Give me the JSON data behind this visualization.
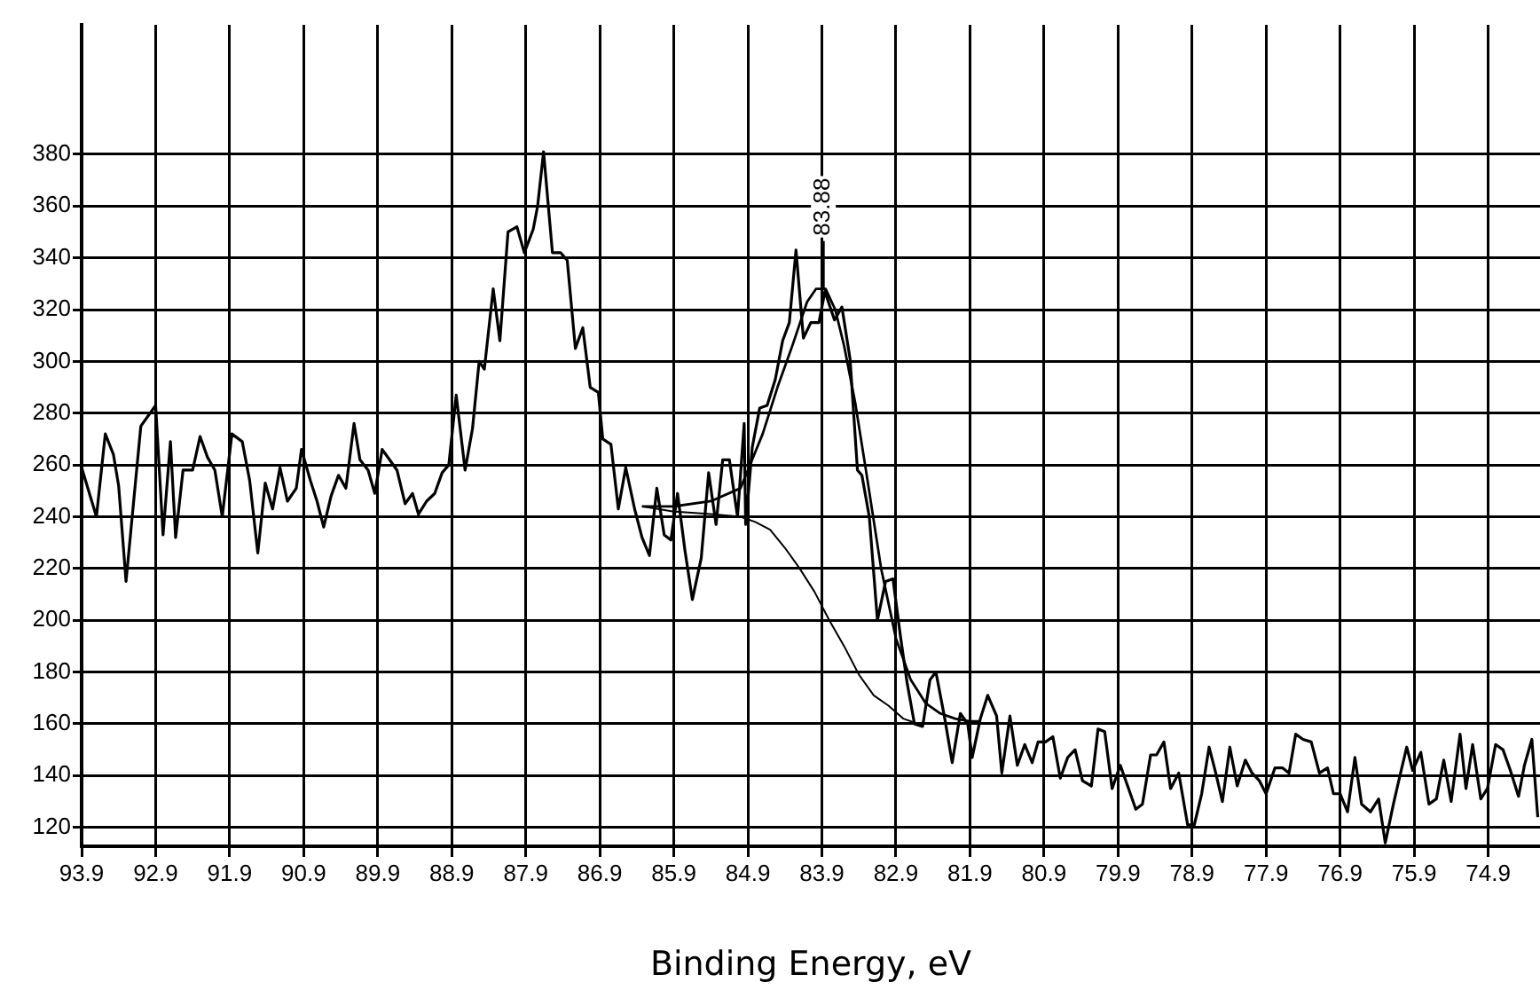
{
  "chart_data": {
    "type": "line",
    "xlabel": "Binding Energy, eV",
    "xlim": [
      93.9,
      74.2
    ],
    "ylim": [
      112.7,
      430
    ],
    "xticks": [
      93.9,
      92.9,
      91.9,
      90.9,
      89.9,
      88.9,
      87.9,
      86.9,
      85.9,
      84.9,
      83.9,
      82.9,
      81.9,
      80.9,
      79.9,
      78.9,
      77.9,
      76.9,
      75.9,
      74.9
    ],
    "yticks": [
      120,
      140,
      160,
      180,
      200,
      220,
      240,
      260,
      280,
      300,
      320,
      340,
      360,
      380
    ],
    "grid": true,
    "marker": "none",
    "line_style": "solid",
    "annotations": [
      {
        "text": "83.88",
        "x": 83.88,
        "y": 328
      }
    ],
    "series": [
      {
        "type": "line",
        "color": "#000000",
        "x": [
          93.9,
          93.7,
          93.58,
          93.47,
          93.4,
          93.3,
          93.1,
          92.9,
          92.8,
          92.7,
          92.63,
          92.53,
          92.4,
          92.3,
          92.2,
          92.1,
          92.0,
          91.87,
          91.73,
          91.63,
          91.52,
          91.42,
          91.32,
          91.22,
          91.12,
          91.0,
          90.93,
          90.81,
          90.72,
          90.63,
          90.53,
          90.43,
          90.33,
          90.22,
          90.14,
          90.03,
          89.94,
          89.84,
          89.74,
          89.64,
          89.53,
          89.43,
          89.35,
          89.24,
          89.13,
          89.03,
          88.94,
          88.84,
          88.72,
          88.62,
          88.53,
          88.46,
          88.34,
          88.25,
          88.14,
          88.02,
          87.92,
          87.8,
          87.74,
          87.66,
          87.54,
          87.43,
          87.34,
          87.23,
          87.13,
          87.03,
          86.92,
          86.86,
          86.75,
          86.65,
          86.55,
          86.43,
          86.33,
          86.23,
          86.13,
          86.03,
          85.94,
          85.85,
          85.75,
          85.65,
          85.53,
          85.43,
          85.33,
          85.24,
          85.15,
          85.04,
          84.95,
          84.93,
          84.84,
          84.74,
          84.64,
          84.53,
          84.43,
          84.34,
          84.25,
          84.15,
          84.05,
          83.94,
          83.86,
          83.73,
          83.63,
          83.52,
          83.42,
          83.36,
          83.26,
          83.15,
          83.04,
          82.94,
          82.84,
          82.75,
          82.65,
          82.54,
          82.44,
          82.36,
          82.24,
          82.14,
          82.03,
          81.93,
          81.87,
          81.76,
          81.66,
          81.54,
          81.47,
          81.36,
          81.26,
          81.16,
          81.06,
          80.98,
          80.88,
          80.78,
          80.68,
          80.58,
          80.48,
          80.38,
          80.26,
          80.17,
          80.08,
          79.98,
          79.87,
          79.77,
          79.66,
          79.57,
          79.46,
          79.38,
          79.28,
          79.19,
          79.08,
          78.96,
          78.87,
          78.77,
          78.67,
          78.58,
          78.49,
          78.39,
          78.29,
          78.18,
          78.09,
          77.99,
          77.9,
          77.78,
          77.68,
          77.59,
          77.5,
          77.4,
          77.29,
          77.18,
          77.07,
          76.99,
          76.9,
          76.8,
          76.7,
          76.61,
          76.49,
          76.38,
          76.29,
          76.18,
          76.1,
          76.0,
          75.92,
          75.81,
          75.7,
          75.6,
          75.5,
          75.4,
          75.28,
          75.2,
          75.11,
          75.0,
          74.91,
          74.8,
          74.7,
          74.6,
          74.49,
          74.41,
          74.31,
          74.23
        ],
        "values": [
          259,
          240,
          272,
          264,
          252,
          215,
          275,
          283,
          233,
          269,
          232,
          258,
          258,
          271,
          263,
          258,
          240,
          272,
          269,
          254,
          226,
          253,
          243,
          259,
          246,
          251,
          266,
          254,
          246,
          236,
          248,
          256,
          251,
          276,
          262,
          258,
          249,
          266,
          262,
          258,
          245,
          249,
          241,
          246,
          249,
          257,
          260,
          287,
          258,
          274,
          300,
          297,
          328,
          308,
          350,
          352,
          342,
          351,
          360,
          381,
          342,
          342,
          339,
          305,
          313,
          290,
          288,
          270,
          268,
          243,
          259,
          243,
          232,
          225,
          251,
          233,
          231,
          249,
          227,
          208,
          224,
          257,
          237,
          262,
          262,
          240,
          276,
          237,
          267,
          282,
          283,
          293,
          308,
          315,
          343,
          309,
          315,
          315,
          327,
          316,
          321,
          301,
          258,
          256,
          240,
          200,
          215,
          216,
          194,
          176,
          160,
          159,
          177,
          180,
          162,
          145,
          164,
          160,
          147,
          162,
          171,
          163,
          141,
          163,
          144,
          152,
          145,
          153,
          153,
          155,
          139,
          147,
          150,
          138,
          136,
          158,
          157,
          135,
          144,
          136,
          127,
          129,
          148,
          148,
          153,
          135,
          141,
          121,
          121,
          133,
          151,
          141,
          130,
          151,
          136,
          146,
          141,
          138,
          133,
          143,
          143,
          141,
          156,
          154,
          153,
          141,
          143,
          133,
          133,
          126,
          147,
          129,
          126,
          131,
          114,
          129,
          139,
          151,
          142,
          149,
          129,
          131,
          146,
          130,
          156,
          135,
          152,
          131,
          135,
          152,
          150,
          142,
          132,
          144,
          154,
          124
        ]
      },
      {
        "type": "line",
        "color": "#000000",
        "x": [
          86.33,
          85.9,
          85.4,
          85.0,
          84.9,
          84.7,
          84.5,
          84.3,
          84.1,
          83.98,
          83.85,
          83.72,
          83.6,
          83.45,
          83.3,
          83.1,
          82.9,
          82.7,
          82.5,
          82.3,
          82.1,
          81.9,
          81.77
        ],
        "values": [
          244,
          244,
          246,
          251,
          258,
          272,
          290,
          306,
          323,
          328,
          328,
          320,
          306,
          284,
          257,
          220,
          193,
          177,
          168,
          164,
          162,
          161,
          161
        ]
      },
      {
        "type": "line",
        "color": "#000000",
        "x": [
          86.33,
          85.9,
          85.4,
          85.0,
          84.8,
          84.6,
          84.4,
          84.2,
          84.0,
          83.8,
          83.6,
          83.4,
          83.2,
          83.0,
          82.8,
          82.6,
          82.2,
          81.77
        ],
        "values": [
          244,
          242,
          241,
          240,
          238,
          235,
          228,
          220,
          211,
          200,
          190,
          179,
          171,
          167,
          162,
          160,
          160,
          160
        ]
      }
    ]
  }
}
